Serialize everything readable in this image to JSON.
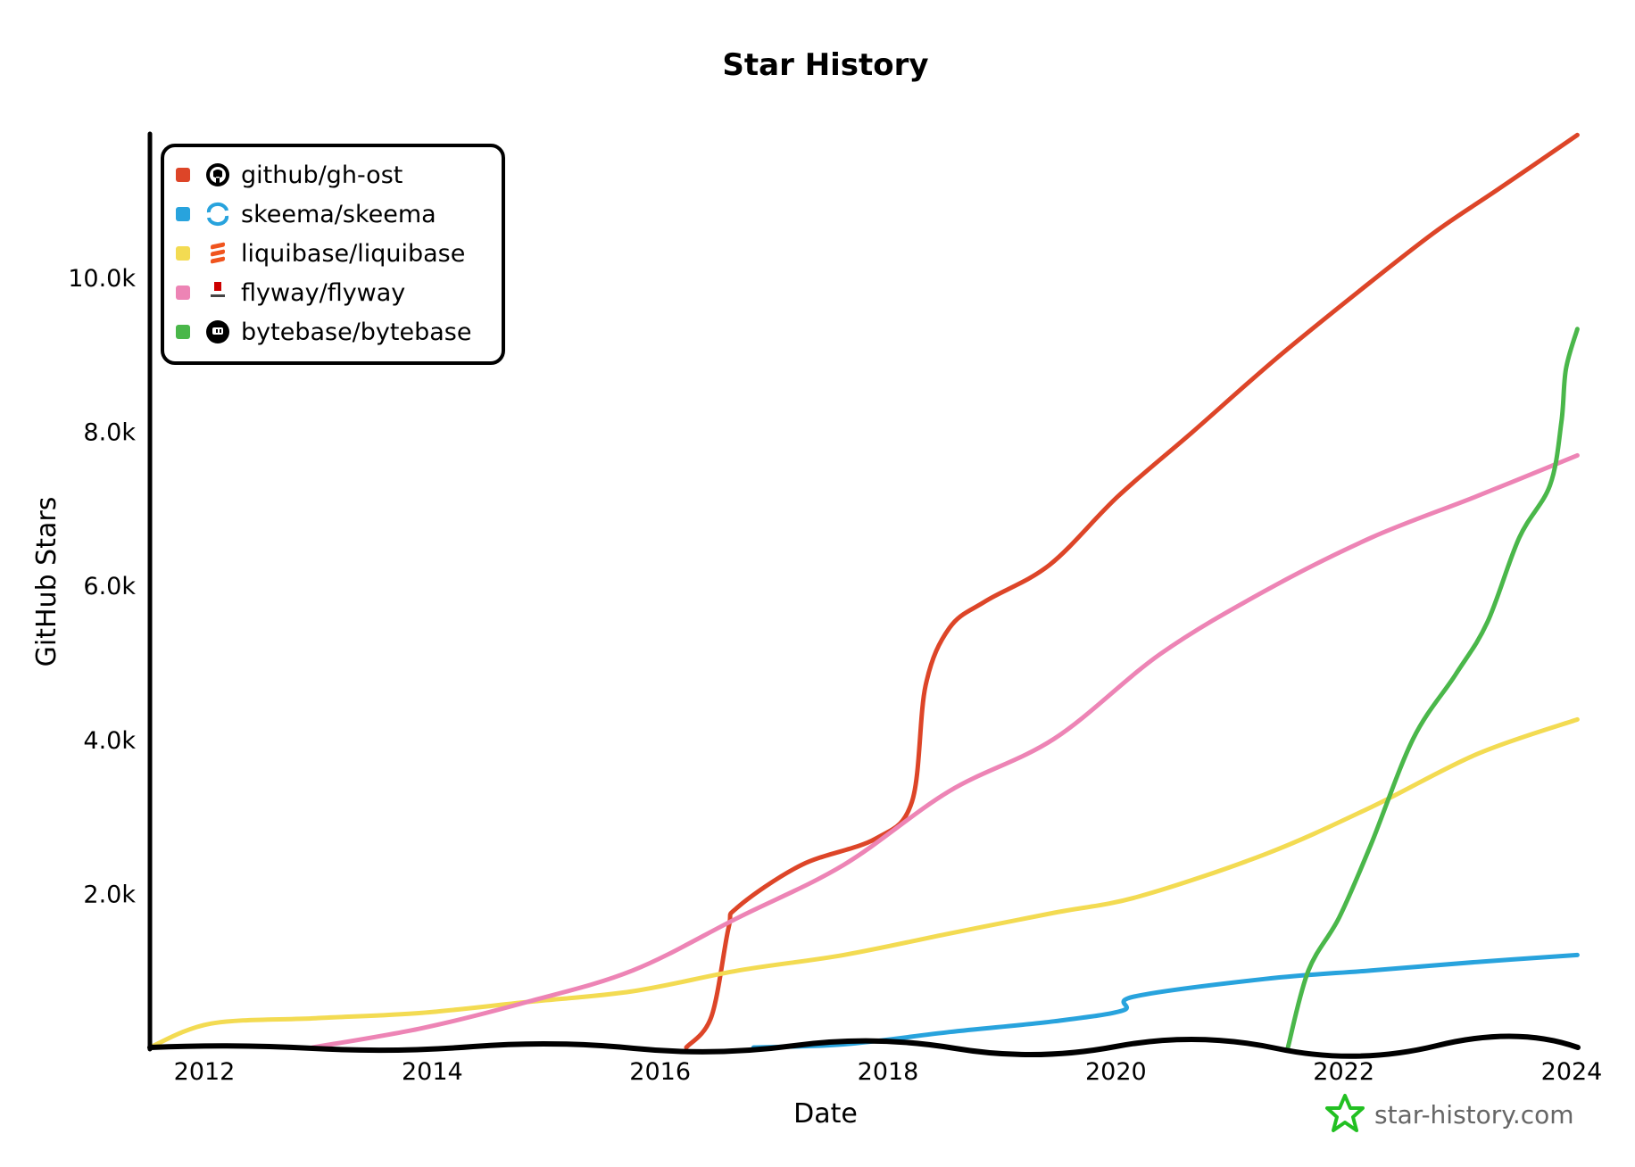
{
  "chart_data": {
    "type": "line",
    "title": "Star History",
    "xlabel": "Date",
    "ylabel": "GitHub Stars",
    "xlim": [
      2011.5,
      2024.1
    ],
    "ylim": [
      0,
      12000
    ],
    "x_ticks": [
      "2012",
      "2014",
      "2016",
      "2018",
      "2020",
      "2022",
      "2024"
    ],
    "y_ticks": [
      "2.0k",
      "4.0k",
      "6.0k",
      "8.0k",
      "10.0k"
    ],
    "grid": false,
    "legend_position": "top-left",
    "series": [
      {
        "name": "github/gh-ost",
        "color": "#dd4528",
        "icon": "github-icon",
        "x": [
          2016.23,
          2016.45,
          2016.6,
          2016.68,
          2017.24,
          2017.89,
          2018.21,
          2018.33,
          2018.54,
          2018.86,
          2019.42,
          2020.02,
          2020.67,
          2021.41,
          2022.15,
          2022.8,
          2023.35,
          2024.05
        ],
        "y": [
          0,
          400,
          1550,
          1820,
          2370,
          2710,
          3190,
          4700,
          5450,
          5800,
          6270,
          7160,
          7990,
          8950,
          9840,
          10590,
          11140,
          11850
        ]
      },
      {
        "name": "skeema/skeema",
        "color": "#28a3dd",
        "icon": "skeema-logo-icon",
        "x": [
          2016.82,
          2017.61,
          2018.54,
          2019.46,
          2020.06,
          2020.16,
          2021.31,
          2022.24,
          2023.17,
          2024.05
        ],
        "y": [
          0,
          40,
          200,
          340,
          480,
          660,
          890,
          1000,
          1110,
          1200
        ]
      },
      {
        "name": "liquibase/liquibase",
        "color": "#f3db52",
        "icon": "liquibase-logo-icon",
        "x": [
          2011.52,
          2012.06,
          2012.98,
          2013.91,
          2014.83,
          2015.76,
          2016.69,
          2017.61,
          2018.54,
          2019.46,
          2020.2,
          2021.31,
          2022.24,
          2023.17,
          2024.05
        ],
        "y": [
          0,
          310,
          380,
          450,
          590,
          730,
          1000,
          1200,
          1480,
          1750,
          1960,
          2510,
          3120,
          3810,
          4260
        ]
      },
      {
        "name": "flyway/flyway",
        "color": "#ed84b5",
        "icon": "flyway-logo-icon",
        "x": [
          2012.95,
          2013.91,
          2014.83,
          2015.76,
          2016.69,
          2017.61,
          2018.54,
          2019.46,
          2020.39,
          2021.31,
          2022.24,
          2023.17,
          2024.05
        ],
        "y": [
          0,
          250,
          590,
          1000,
          1690,
          2370,
          3330,
          4010,
          5110,
          5930,
          6620,
          7160,
          7690
        ]
      },
      {
        "name": "bytebase/bytebase",
        "color": "#4ab74a",
        "icon": "bytebase-logo-icon",
        "x": [
          2021.51,
          2021.69,
          2021.96,
          2022.24,
          2022.61,
          2022.98,
          2023.26,
          2023.54,
          2023.81,
          2023.91,
          2023.95,
          2024.05
        ],
        "y": [
          0,
          1000,
          1690,
          2640,
          4010,
          4840,
          5520,
          6620,
          7300,
          8120,
          8810,
          9330
        ]
      }
    ]
  },
  "watermark": {
    "text": "star-history.com",
    "icon": "star-history-logo-icon",
    "color": "#22c022"
  }
}
